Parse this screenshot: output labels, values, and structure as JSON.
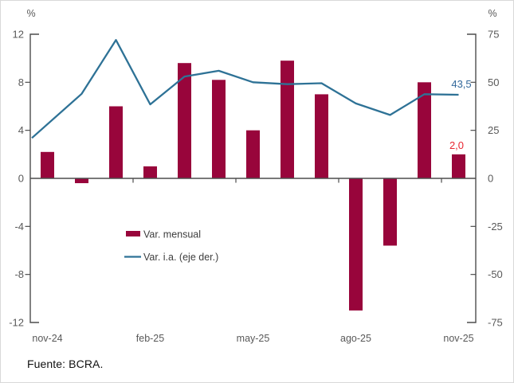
{
  "source_note": "Fuente: BCRA.",
  "chart_data": {
    "type": "bar",
    "subtype": "combo-bar-line-dual-axis",
    "categories": [
      "nov-24",
      "dic-24",
      "ene-25",
      "feb-25",
      "mar-25",
      "abr-25",
      "may-25",
      "jun-25",
      "jul-25",
      "ago-25",
      "sep-25",
      "oct-25",
      "nov-25"
    ],
    "x_tick_labels": [
      "nov-24",
      "feb-25",
      "may-25",
      "ago-25",
      "nov-25"
    ],
    "series": [
      {
        "name": "Var. mensual",
        "kind": "bar",
        "axis": "left",
        "color": "#98053B",
        "values": [
          2.2,
          -0.4,
          6.0,
          1.0,
          9.6,
          8.2,
          4.0,
          9.8,
          7.0,
          -11.0,
          -5.6,
          8.0,
          2.0
        ]
      },
      {
        "name": "Var. i.a. (eje der.)",
        "kind": "line",
        "axis": "right",
        "color": "#2E7296",
        "values": [
          21,
          44,
          72,
          38.5,
          53,
          56,
          50,
          49,
          49.5,
          39,
          33,
          43.8,
          43.5
        ]
      }
    ],
    "left_axis": {
      "label": "%",
      "min": -12,
      "max": 12,
      "ticks": [
        12,
        8,
        4,
        0,
        -4,
        -8,
        -12
      ]
    },
    "right_axis": {
      "label": "%",
      "min": -75,
      "max": 75,
      "ticks": [
        75,
        50,
        25,
        0,
        -25,
        -50,
        -75
      ]
    },
    "annotations": [
      {
        "text": "43,5",
        "series": "Var. i.a. (eje der.)",
        "color": "#33689B"
      },
      {
        "text": "2,0",
        "series": "Var. mensual",
        "color": "#E82530"
      }
    ],
    "legend": {
      "items": [
        "Var. mensual",
        "Var. i.a. (eje der.)"
      ],
      "position": "inside-lower-left"
    },
    "grid": false,
    "text_color": "#595959",
    "axis_color": "#4D4D4D"
  }
}
